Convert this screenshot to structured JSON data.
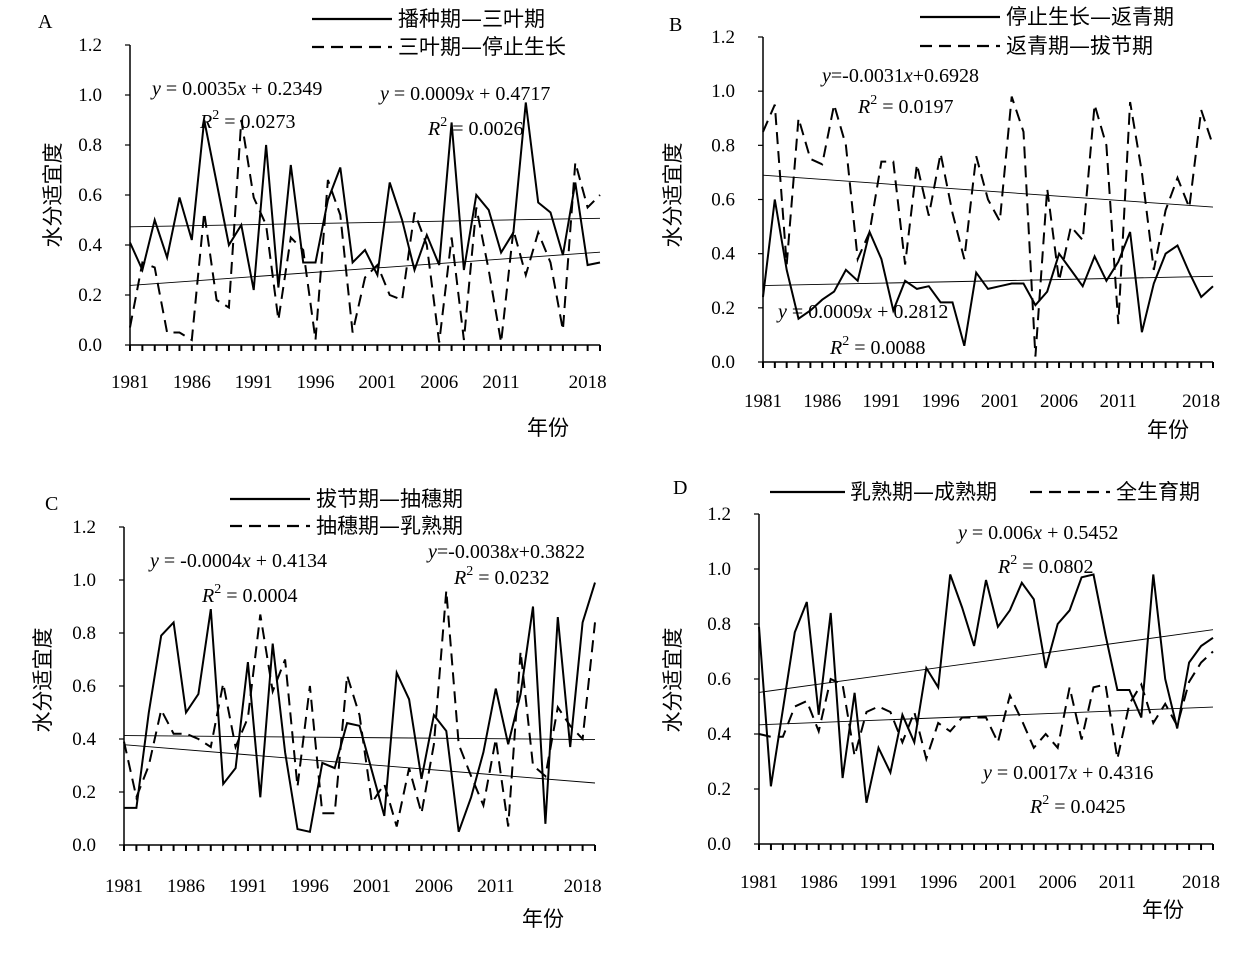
{
  "chart_data": [
    {
      "id": "A",
      "type": "line",
      "panel_label": "A",
      "xlabel": "年份",
      "ylabel": "水分适宜度",
      "ylim": [
        0,
        1.2
      ],
      "yticks": [
        "0.0",
        "0.2",
        "0.4",
        "0.6",
        "0.8",
        "1.0",
        "1.2"
      ],
      "xticks": [
        "1981",
        "1986",
        "1991",
        "1996",
        "2001",
        "2006",
        "2011",
        "2018"
      ],
      "x": [
        1981,
        1982,
        1983,
        1984,
        1985,
        1986,
        1987,
        1988,
        1989,
        1990,
        1991,
        1992,
        1993,
        1994,
        1995,
        1996,
        1997,
        1998,
        1999,
        2000,
        2001,
        2002,
        2003,
        2004,
        2005,
        2006,
        2007,
        2008,
        2009,
        2010,
        2011,
        2012,
        2013,
        2014,
        2015,
        2016,
        2017,
        2018,
        2019
      ],
      "series": [
        {
          "name": "播种期—三叶期",
          "style": "solid",
          "values": [
            0.41,
            0.3,
            0.5,
            0.35,
            0.59,
            0.42,
            0.9,
            0.65,
            0.4,
            0.48,
            0.22,
            0.8,
            0.23,
            0.72,
            0.33,
            0.33,
            0.58,
            0.71,
            0.33,
            0.38,
            0.28,
            0.65,
            0.5,
            0.3,
            0.44,
            0.32,
            0.89,
            0.3,
            0.6,
            0.54,
            0.37,
            0.45,
            0.97,
            0.57,
            0.53,
            0.36,
            0.65,
            0.32,
            0.33
          ]
        },
        {
          "name": "三叶期—停止生长",
          "style": "dashed",
          "values": [
            0.07,
            0.33,
            0.31,
            0.05,
            0.05,
            0.02,
            0.53,
            0.18,
            0.15,
            0.9,
            0.59,
            0.48,
            0.1,
            0.43,
            0.38,
            0.02,
            0.66,
            0.52,
            0.05,
            0.27,
            0.32,
            0.2,
            0.18,
            0.53,
            0.4,
            0.01,
            0.43,
            0.02,
            0.55,
            0.3,
            0.01,
            0.46,
            0.28,
            0.45,
            0.33,
            0.06,
            0.73,
            0.55,
            0.6
          ]
        }
      ],
      "trendlines": [
        {
          "slope": 0.0035,
          "intercept": 0.2349,
          "equation": "y = 0.0035x + 0.2349",
          "r2": "R² = 0.0273"
        },
        {
          "slope": 0.0009,
          "intercept": 0.4717,
          "equation": "y = 0.0009x + 0.4717",
          "r2": "R² = 0.0026"
        }
      ],
      "legend_placement": "top-right"
    },
    {
      "id": "B",
      "type": "line",
      "panel_label": "B",
      "xlabel": "年份",
      "ylabel": "水分适宜度",
      "ylim": [
        0,
        1.2
      ],
      "yticks": [
        "0.0",
        "0.2",
        "0.4",
        "0.6",
        "0.8",
        "1.0",
        "1.2"
      ],
      "xticks": [
        "1981",
        "1986",
        "1991",
        "1996",
        "2001",
        "2006",
        "2011",
        "2018"
      ],
      "x": [
        1981,
        1982,
        1983,
        1984,
        1985,
        1986,
        1987,
        1988,
        1989,
        1990,
        1991,
        1992,
        1993,
        1994,
        1995,
        1996,
        1997,
        1998,
        1999,
        2000,
        2001,
        2002,
        2003,
        2004,
        2005,
        2006,
        2007,
        2008,
        2009,
        2010,
        2011,
        2012,
        2013,
        2014,
        2015,
        2016,
        2017,
        2018,
        2019
      ],
      "series": [
        {
          "name": "停止生长—返青期",
          "style": "solid",
          "values": [
            0.24,
            0.6,
            0.34,
            0.16,
            0.19,
            0.23,
            0.26,
            0.34,
            0.3,
            0.48,
            0.38,
            0.19,
            0.3,
            0.27,
            0.28,
            0.22,
            0.22,
            0.06,
            0.33,
            0.27,
            0.28,
            0.29,
            0.29,
            0.21,
            0.26,
            0.4,
            0.34,
            0.28,
            0.39,
            0.3,
            0.37,
            0.48,
            0.11,
            0.29,
            0.4,
            0.43,
            0.33,
            0.24,
            0.28
          ]
        },
        {
          "name": "返青期—拔节期",
          "style": "dashed",
          "values": [
            0.85,
            0.95,
            0.36,
            0.9,
            0.75,
            0.73,
            0.95,
            0.8,
            0.38,
            0.48,
            0.74,
            0.74,
            0.36,
            0.73,
            0.54,
            0.77,
            0.55,
            0.38,
            0.76,
            0.6,
            0.52,
            0.98,
            0.85,
            0.02,
            0.64,
            0.3,
            0.5,
            0.45,
            0.95,
            0.8,
            0.14,
            0.96,
            0.7,
            0.34,
            0.56,
            0.68,
            0.57,
            0.93,
            0.8
          ]
        }
      ],
      "trendlines": [
        {
          "slope": -0.0031,
          "intercept": 0.6928,
          "equation": "y=-0.0031x+0.6928",
          "r2": "R² = 0.0197"
        },
        {
          "slope": 0.0009,
          "intercept": 0.2812,
          "equation": "y = 0.0009x + 0.2812",
          "r2": "R² = 0.0088"
        }
      ],
      "legend_placement": "top-right"
    },
    {
      "id": "C",
      "type": "line",
      "panel_label": "C",
      "xlabel": "年份",
      "ylabel": "水分适宜度",
      "ylim": [
        0,
        1.2
      ],
      "yticks": [
        "0.0",
        "0.2",
        "0.4",
        "0.6",
        "0.8",
        "1.0",
        "1.2"
      ],
      "xticks": [
        "1981",
        "1986",
        "1991",
        "1996",
        "2001",
        "2006",
        "2011",
        "2018"
      ],
      "x": [
        1981,
        1982,
        1983,
        1984,
        1985,
        1986,
        1987,
        1988,
        1989,
        1990,
        1991,
        1992,
        1993,
        1994,
        1995,
        1996,
        1997,
        1998,
        1999,
        2000,
        2001,
        2002,
        2003,
        2004,
        2005,
        2006,
        2007,
        2008,
        2009,
        2010,
        2011,
        2012,
        2013,
        2014,
        2015,
        2016,
        2017,
        2018,
        2019
      ],
      "series": [
        {
          "name": "拔节期—抽穗期",
          "style": "solid",
          "values": [
            0.14,
            0.14,
            0.5,
            0.79,
            0.84,
            0.5,
            0.57,
            0.89,
            0.23,
            0.29,
            0.69,
            0.18,
            0.76,
            0.35,
            0.06,
            0.05,
            0.31,
            0.29,
            0.46,
            0.45,
            0.28,
            0.11,
            0.65,
            0.55,
            0.25,
            0.49,
            0.43,
            0.05,
            0.18,
            0.35,
            0.59,
            0.38,
            0.57,
            0.9,
            0.08,
            0.86,
            0.37,
            0.84,
            0.99
          ]
        },
        {
          "name": "抽穗期—乳熟期",
          "style": "dashed",
          "values": [
            0.39,
            0.18,
            0.3,
            0.51,
            0.42,
            0.42,
            0.4,
            0.37,
            0.61,
            0.37,
            0.48,
            0.87,
            0.58,
            0.7,
            0.22,
            0.6,
            0.12,
            0.12,
            0.64,
            0.49,
            0.16,
            0.23,
            0.07,
            0.29,
            0.12,
            0.38,
            0.96,
            0.38,
            0.26,
            0.15,
            0.4,
            0.07,
            0.73,
            0.3,
            0.26,
            0.52,
            0.45,
            0.4,
            0.84
          ]
        }
      ],
      "trendlines": [
        {
          "slope": -0.0004,
          "intercept": 0.4134,
          "equation": "y = -0.0004x + 0.4134",
          "r2": "R² = 0.0004"
        },
        {
          "slope": -0.0038,
          "intercept": 0.3822,
          "equation": "y=-0.0038x+0.3822",
          "r2": "R² = 0.0232"
        }
      ],
      "legend_placement": "top-center"
    },
    {
      "id": "D",
      "type": "line",
      "panel_label": "D",
      "xlabel": "年份",
      "ylabel": "水分适宜度",
      "ylim": [
        0,
        1.2
      ],
      "yticks": [
        "0.0",
        "0.2",
        "0.4",
        "0.6",
        "0.8",
        "1.0",
        "1.2"
      ],
      "xticks": [
        "1981",
        "1986",
        "1991",
        "1996",
        "2001",
        "2006",
        "2011",
        "2018"
      ],
      "x": [
        1981,
        1982,
        1983,
        1984,
        1985,
        1986,
        1987,
        1988,
        1989,
        1990,
        1991,
        1992,
        1993,
        1994,
        1995,
        1996,
        1997,
        1998,
        1999,
        2000,
        2001,
        2002,
        2003,
        2004,
        2005,
        2006,
        2007,
        2008,
        2009,
        2010,
        2011,
        2012,
        2013,
        2014,
        2015,
        2016,
        2017,
        2018,
        2019
      ],
      "series": [
        {
          "name": "乳熟期—成熟期",
          "style": "solid",
          "values": [
            0.79,
            0.21,
            0.49,
            0.77,
            0.88,
            0.47,
            0.84,
            0.24,
            0.55,
            0.15,
            0.35,
            0.26,
            0.47,
            0.37,
            0.64,
            0.57,
            0.98,
            0.86,
            0.72,
            0.96,
            0.79,
            0.85,
            0.95,
            0.89,
            0.64,
            0.8,
            0.85,
            0.97,
            0.98,
            0.76,
            0.56,
            0.56,
            0.46,
            0.98,
            0.6,
            0.42,
            0.66,
            0.72,
            0.75
          ]
        },
        {
          "name": "全生育期",
          "style": "dashed",
          "values": [
            0.4,
            0.39,
            0.39,
            0.5,
            0.52,
            0.41,
            0.6,
            0.58,
            0.32,
            0.48,
            0.5,
            0.48,
            0.37,
            0.48,
            0.31,
            0.44,
            0.41,
            0.46,
            0.46,
            0.46,
            0.37,
            0.54,
            0.45,
            0.35,
            0.4,
            0.35,
            0.57,
            0.38,
            0.57,
            0.58,
            0.31,
            0.51,
            0.58,
            0.44,
            0.51,
            0.43,
            0.59,
            0.66,
            0.7
          ]
        }
      ],
      "trendlines": [
        {
          "slope": 0.006,
          "intercept": 0.5452,
          "equation": "y = 0.006x + 0.5452",
          "r2": "R² = 0.0802"
        },
        {
          "slope": 0.0017,
          "intercept": 0.4316,
          "equation": "y = 0.0017x + 0.4316",
          "r2": "R² = 0.0425"
        }
      ],
      "legend_placement": "top"
    }
  ]
}
